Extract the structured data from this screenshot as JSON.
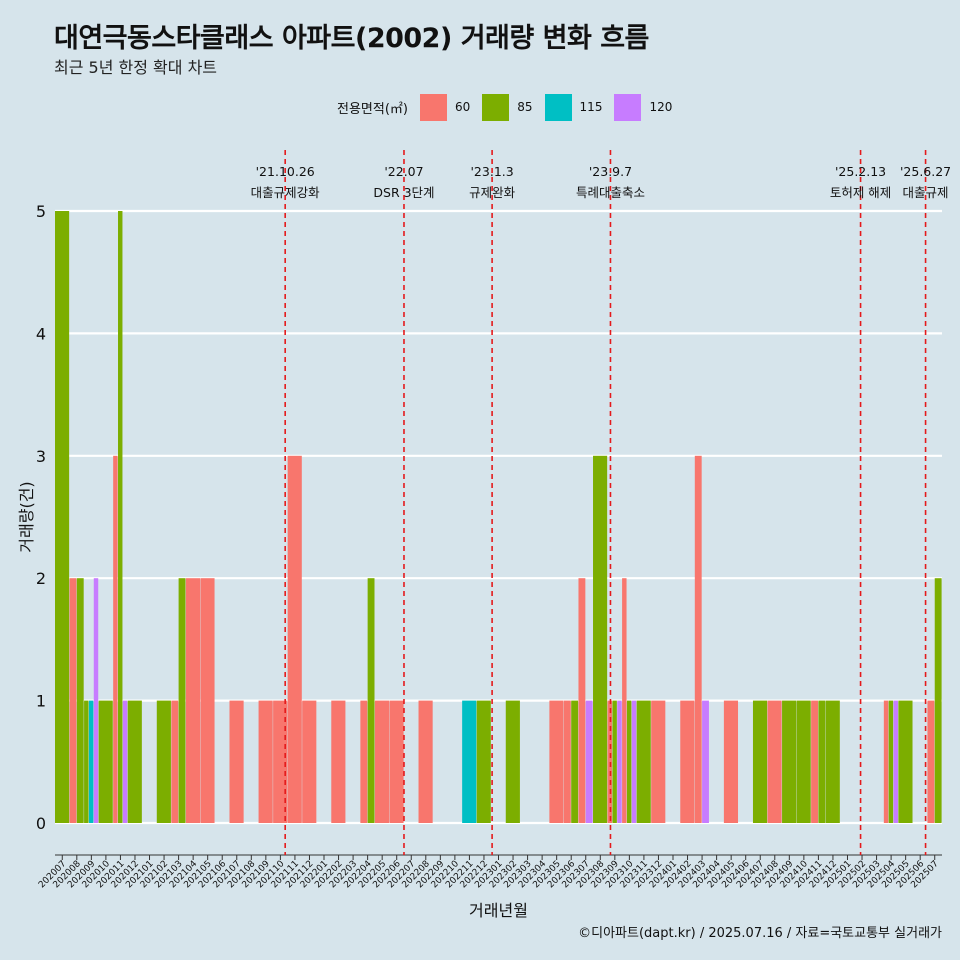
{
  "title": "대연극동스타클래스 아파트(2002) 거래량 변화 흐름",
  "subtitle": "최근 5년 한정 확대 차트",
  "caption": "©디아파트(dapt.kr) / 2025.07.16 / 자료=국토교통부 실거래가",
  "legend": {
    "title": "전용면적(㎡)",
    "items": [
      {
        "label": "60",
        "color": "#f8766d"
      },
      {
        "label": "85",
        "color": "#7cae00"
      },
      {
        "label": "115",
        "color": "#00bfc4"
      },
      {
        "label": "120",
        "color": "#c77cff"
      }
    ]
  },
  "chart_data": {
    "type": "bar",
    "xlabel": "거래년월",
    "ylabel": "거래량(건)",
    "ylim": [
      0,
      5
    ],
    "yticks": [
      0,
      1,
      2,
      3,
      4,
      5
    ],
    "grid": true,
    "legend_position": "top",
    "categories": [
      "202007",
      "202008",
      "202009",
      "202010",
      "202011",
      "202012",
      "202101",
      "202102",
      "202103",
      "202104",
      "202105",
      "202106",
      "202107",
      "202108",
      "202109",
      "202110",
      "202111",
      "202112",
      "202201",
      "202202",
      "202203",
      "202204",
      "202205",
      "202206",
      "202207",
      "202208",
      "202209",
      "202210",
      "202211",
      "202212",
      "202301",
      "202302",
      "202303",
      "202304",
      "202305",
      "202306",
      "202307",
      "202308",
      "202309",
      "202310",
      "202311",
      "202312",
      "202401",
      "202402",
      "202403",
      "202404",
      "202405",
      "202406",
      "202407",
      "202408",
      "202409",
      "202410",
      "202411",
      "202412",
      "202501",
      "202502",
      "202503",
      "202504",
      "202505",
      "202506",
      "202507"
    ],
    "series": [
      {
        "name": "60",
        "color": "#f8766d",
        "values": [
          0,
          2,
          0,
          0,
          3,
          0,
          0,
          0,
          1,
          2,
          2,
          0,
          1,
          0,
          1,
          1,
          3,
          1,
          0,
          1,
          0,
          1,
          1,
          1,
          0,
          1,
          0,
          0,
          0,
          0,
          0,
          0,
          0,
          0,
          1,
          1,
          2,
          0,
          1,
          2,
          0,
          1,
          0,
          1,
          3,
          0,
          1,
          0,
          0,
          1,
          0,
          0,
          1,
          0,
          0,
          0,
          0,
          1,
          0,
          0,
          1
        ]
      },
      {
        "name": "85",
        "color": "#7cae00",
        "values": [
          5,
          2,
          1,
          1,
          5,
          1,
          0,
          1,
          2,
          0,
          0,
          0,
          0,
          0,
          0,
          0,
          0,
          0,
          0,
          0,
          0,
          2,
          0,
          0,
          0,
          0,
          0,
          0,
          0,
          1,
          0,
          1,
          0,
          0,
          0,
          1,
          0,
          3,
          1,
          1,
          1,
          0,
          0,
          0,
          0,
          0,
          0,
          0,
          1,
          0,
          1,
          1,
          1,
          1,
          0,
          0,
          0,
          1,
          1,
          0,
          2
        ]
      },
      {
        "name": "115",
        "color": "#00bfc4",
        "values": [
          0,
          0,
          1,
          0,
          0,
          0,
          0,
          0,
          0,
          0,
          0,
          0,
          0,
          0,
          0,
          0,
          0,
          0,
          0,
          0,
          0,
          0,
          0,
          0,
          0,
          0,
          0,
          0,
          1,
          0,
          0,
          0,
          0,
          0,
          0,
          0,
          0,
          0,
          0,
          0,
          0,
          0,
          0,
          0,
          0,
          0,
          0,
          0,
          0,
          0,
          0,
          0,
          0,
          0,
          0,
          0,
          0,
          0,
          0,
          0,
          0
        ]
      },
      {
        "name": "120",
        "color": "#c77cff",
        "values": [
          0,
          0,
          2,
          0,
          1,
          0,
          0,
          0,
          0,
          0,
          0,
          0,
          0,
          0,
          0,
          0,
          0,
          0,
          0,
          0,
          0,
          0,
          0,
          0,
          0,
          0,
          0,
          0,
          0,
          0,
          0,
          0,
          0,
          0,
          0,
          0,
          1,
          0,
          1,
          1,
          0,
          0,
          0,
          0,
          1,
          0,
          0,
          0,
          0,
          0,
          0,
          0,
          0,
          0,
          0,
          0,
          0,
          1,
          0,
          0,
          0
        ]
      }
    ],
    "annotations": [
      {
        "date": "'21.10.26",
        "label": "대출규제강화",
        "category": "202110",
        "offset": 0.83
      },
      {
        "date": "'22.07",
        "label": "DSR 3단계",
        "category": "202207",
        "offset": 0.0
      },
      {
        "date": "'23.1.3",
        "label": "규제완화",
        "category": "202301",
        "offset": 0.06
      },
      {
        "date": "'23.9.7",
        "label": "특례대출축소",
        "category": "202309",
        "offset": 0.2
      },
      {
        "date": "'25.2.13",
        "label": "토허제 해제",
        "category": "202502",
        "offset": 0.4
      },
      {
        "date": "'25.6.27",
        "label": "대출규제",
        "category": "202506",
        "offset": 0.87
      }
    ]
  }
}
